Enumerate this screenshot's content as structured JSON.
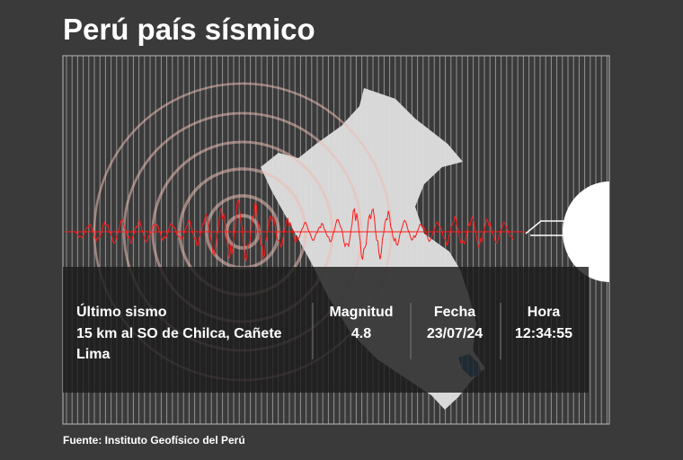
{
  "title": "Perú país sísmico",
  "info": {
    "label": "Último sismo",
    "location": "15 km al SO de Chilca, Cañete",
    "region": "Lima",
    "columns": [
      {
        "label": "Magnitud",
        "value": "4.8"
      },
      {
        "label": "Fecha",
        "value": "23/07/24"
      },
      {
        "label": "Hora",
        "value": "12:34:55"
      }
    ]
  },
  "source": "Fuente: Instituto Geofísico del Perú"
}
